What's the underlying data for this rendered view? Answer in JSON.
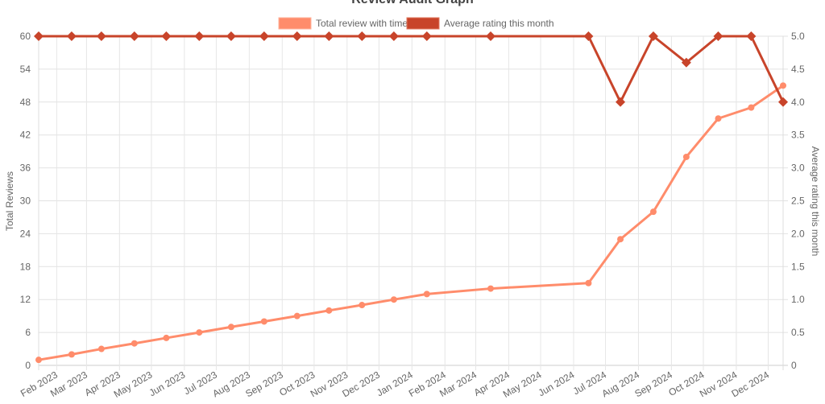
{
  "chart_data": {
    "type": "line",
    "title": "Review Audit Graph",
    "legend_position": "top",
    "grid": true,
    "x_type": "time",
    "x_tick_labels": [
      "Feb 2023",
      "Mar 2023",
      "Apr 2023",
      "May 2023",
      "Jun 2023",
      "Jul 2023",
      "Aug 2023",
      "Sep 2023",
      "Oct 2023",
      "Nov 2023",
      "Dec 2023",
      "Jan 2024",
      "Feb 2024",
      "Mar 2024",
      "Apr 2024",
      "May 2024",
      "Jun 2024",
      "Jul 2024",
      "Aug 2024",
      "Sep 2024",
      "Oct 2024",
      "Nov 2024",
      "Dec 2024"
    ],
    "x": [
      "2023-01-15",
      "2023-02-15",
      "2023-03-15",
      "2023-04-15",
      "2023-05-15",
      "2023-06-15",
      "2023-07-15",
      "2023-08-15",
      "2023-09-15",
      "2023-10-15",
      "2023-11-15",
      "2023-12-15",
      "2024-01-15",
      "2024-03-15",
      "2024-06-15",
      "2024-07-15",
      "2024-08-15",
      "2024-09-15",
      "2024-10-15",
      "2024-11-15",
      "2024-12-15"
    ],
    "y_left": {
      "label": "Total Reviews",
      "ylim": [
        0,
        60
      ],
      "ticks": [
        "0",
        "6",
        "12",
        "18",
        "24",
        "30",
        "36",
        "42",
        "48",
        "54",
        "60"
      ]
    },
    "y_right": {
      "label": "Average rating this month",
      "ylim": [
        0,
        5
      ],
      "ticks": [
        "0",
        "0.5",
        "1.0",
        "1.5",
        "2.0",
        "2.5",
        "3.0",
        "3.5",
        "4.0",
        "4.5",
        "5.0"
      ]
    },
    "series": [
      {
        "name": "Total review with time",
        "axis": "left",
        "color": "#ff8c6b",
        "marker": "circle",
        "values": [
          1,
          2,
          3,
          4,
          5,
          6,
          7,
          8,
          9,
          10,
          11,
          12,
          13,
          14,
          15,
          23,
          28,
          38,
          45,
          47,
          51
        ]
      },
      {
        "name": "Average rating this month",
        "axis": "right",
        "color": "#c8442a",
        "marker": "diamond",
        "values": [
          5,
          5,
          5,
          5,
          5,
          5,
          5,
          5,
          5,
          5,
          5,
          5,
          5,
          5,
          5,
          4.0,
          5,
          4.6,
          5,
          5,
          4.0
        ]
      }
    ]
  }
}
